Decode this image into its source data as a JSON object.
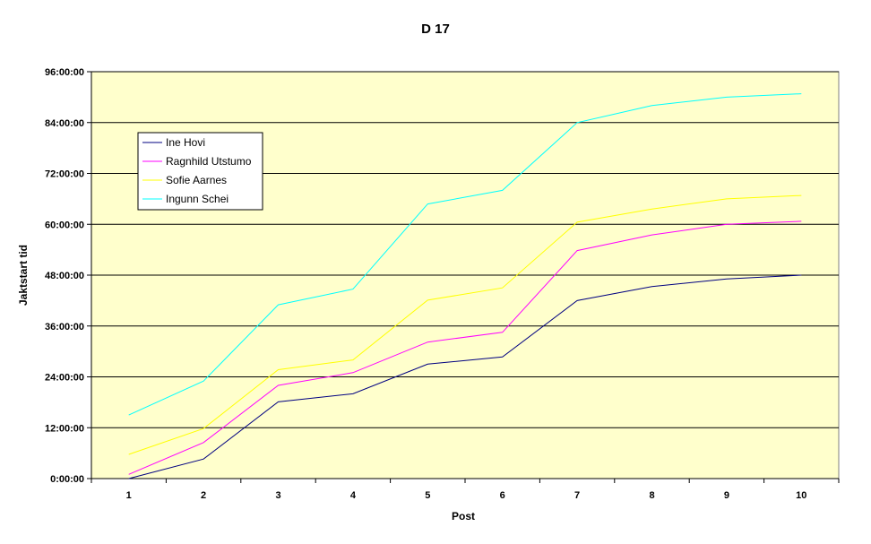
{
  "chart_data": {
    "type": "line",
    "title": "D 17",
    "xlabel": "Post",
    "ylabel": "Jaktstart tid",
    "categories": [
      "1",
      "2",
      "3",
      "4",
      "5",
      "6",
      "7",
      "8",
      "9",
      "10"
    ],
    "y_unit": "hours",
    "ylim": [
      0,
      96
    ],
    "y_ticks": [
      0,
      12,
      24,
      36,
      48,
      60,
      72,
      84,
      96
    ],
    "y_tick_labels": [
      "0:00:00",
      "12:00:00",
      "24:00:00",
      "36:00:00",
      "48:00:00",
      "60:00:00",
      "72:00:00",
      "84:00:00",
      "96:00:00"
    ],
    "grid": "horizontal",
    "legend_position": "top-left",
    "plot_background": "#ffffcc",
    "series": [
      {
        "name": "Ine Hovi",
        "color": "#000080",
        "values": [
          0.0,
          4.6,
          18.1,
          20.0,
          27.0,
          28.7,
          42.0,
          45.3,
          47.1,
          48.0
        ]
      },
      {
        "name": "Ragnhild Utstumo",
        "color": "#ff00ff",
        "values": [
          1.0,
          8.5,
          22.0,
          25.0,
          32.2,
          34.5,
          53.8,
          57.5,
          60.0,
          60.7
        ]
      },
      {
        "name": "Sofie Aarnes",
        "color": "#ffff00",
        "values": [
          5.7,
          11.8,
          25.7,
          28.0,
          42.1,
          45.0,
          60.5,
          63.6,
          66.0,
          66.8
        ]
      },
      {
        "name": "Ingunn Schei",
        "color": "#00ffff",
        "values": [
          15.0,
          23.0,
          41.0,
          44.7,
          64.8,
          68.0,
          84.0,
          88.0,
          90.0,
          90.8
        ]
      }
    ]
  }
}
